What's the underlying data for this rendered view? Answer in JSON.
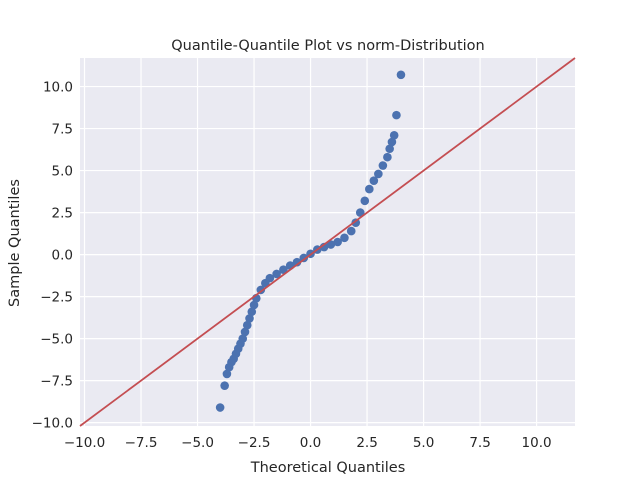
{
  "chart_data": {
    "type": "scatter",
    "title": "Quantile-Quantile Plot vs norm-Distribution",
    "xlabel": "Theoretical Quantiles",
    "ylabel": "Sample Quantiles",
    "xlim": [
      -10.2,
      11.7
    ],
    "ylim": [
      -10.2,
      11.7
    ],
    "x_ticks": [
      -10.0,
      -7.5,
      -5.0,
      -2.5,
      0.0,
      2.5,
      5.0,
      7.5,
      10.0
    ],
    "x_tick_labels": [
      "−10.0",
      "−7.5",
      "−5.0",
      "−2.5",
      "0.0",
      "2.5",
      "5.0",
      "7.5",
      "10.0"
    ],
    "y_ticks": [
      -10.0,
      -7.5,
      -5.0,
      -2.5,
      0.0,
      2.5,
      5.0,
      7.5,
      10.0
    ],
    "y_tick_labels": [
      "−10.0",
      "−7.5",
      "−5.0",
      "−2.5",
      "0.0",
      "2.5",
      "5.0",
      "7.5",
      "10.0"
    ],
    "grid": true,
    "points": [
      [
        -4.0,
        -9.1
      ],
      [
        -3.8,
        -7.8
      ],
      [
        -3.7,
        -7.1
      ],
      [
        -3.6,
        -6.7
      ],
      [
        -3.5,
        -6.4
      ],
      [
        -3.4,
        -6.2
      ],
      [
        -3.3,
        -5.9
      ],
      [
        -3.2,
        -5.6
      ],
      [
        -3.1,
        -5.3
      ],
      [
        -3.0,
        -5.0
      ],
      [
        -2.9,
        -4.6
      ],
      [
        -2.8,
        -4.2
      ],
      [
        -2.7,
        -3.8
      ],
      [
        -2.6,
        -3.4
      ],
      [
        -2.5,
        -3.0
      ],
      [
        -2.4,
        -2.6
      ],
      [
        -2.2,
        -2.1
      ],
      [
        -2.0,
        -1.7
      ],
      [
        -1.8,
        -1.4
      ],
      [
        -1.5,
        -1.15
      ],
      [
        -1.2,
        -0.9
      ],
      [
        -0.9,
        -0.65
      ],
      [
        -0.6,
        -0.45
      ],
      [
        -0.3,
        -0.2
      ],
      [
        0.0,
        0.05
      ],
      [
        0.3,
        0.3
      ],
      [
        0.6,
        0.45
      ],
      [
        0.9,
        0.6
      ],
      [
        1.2,
        0.75
      ],
      [
        1.5,
        1.0
      ],
      [
        1.8,
        1.4
      ],
      [
        2.0,
        1.9
      ],
      [
        2.2,
        2.5
      ],
      [
        2.4,
        3.2
      ],
      [
        2.6,
        3.9
      ],
      [
        2.8,
        4.4
      ],
      [
        3.0,
        4.8
      ],
      [
        3.2,
        5.3
      ],
      [
        3.4,
        5.8
      ],
      [
        3.5,
        6.3
      ],
      [
        3.6,
        6.7
      ],
      [
        3.7,
        7.1
      ],
      [
        3.8,
        8.3
      ],
      [
        4.0,
        10.7
      ]
    ],
    "reference_line": {
      "slope": 1,
      "intercept": 0
    },
    "colors": {
      "points": "#4c72b0",
      "line": "#c44e52",
      "background": "#eaeaf2",
      "grid": "#ffffff"
    }
  }
}
